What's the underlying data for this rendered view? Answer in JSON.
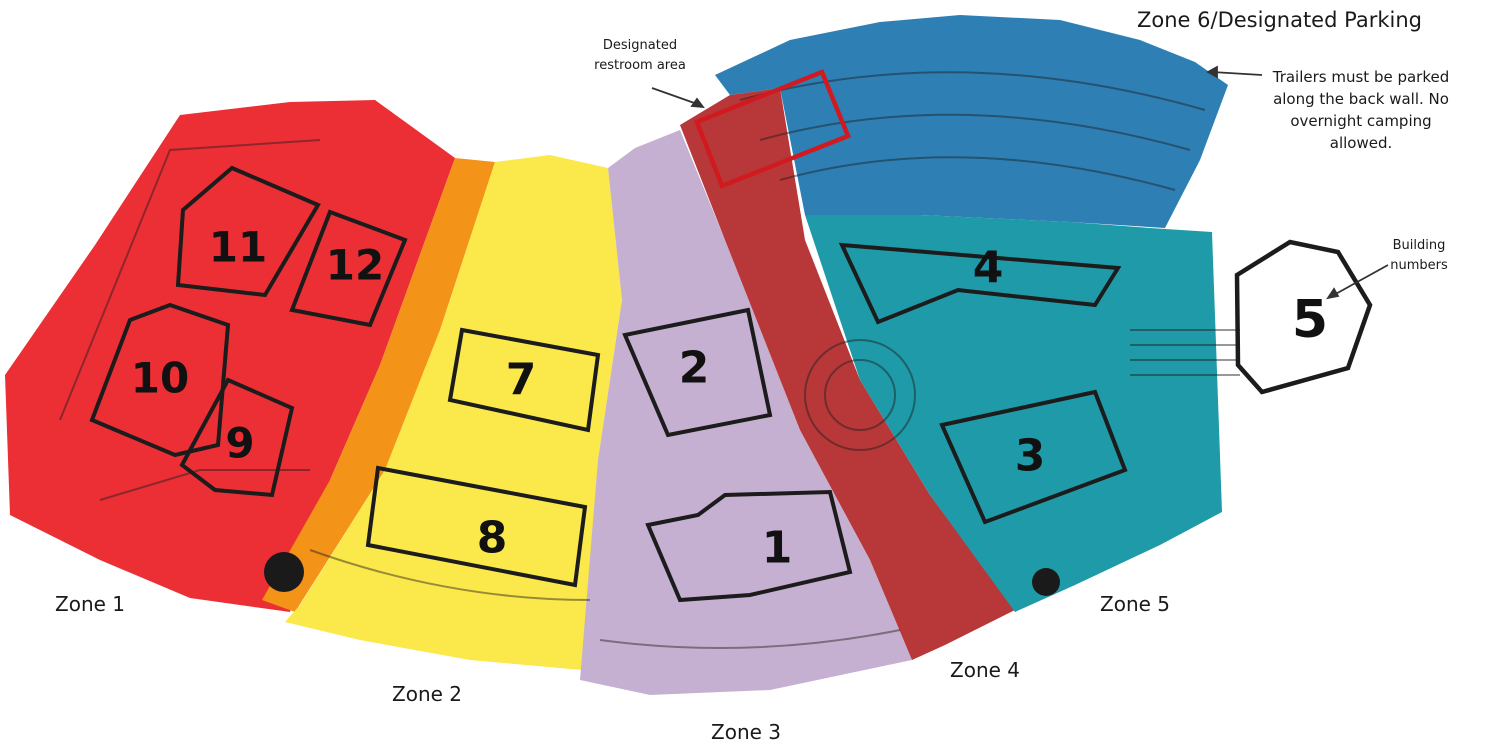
{
  "title": "Zone 6/Designated Parking",
  "annotations": {
    "restroom": "Designated restroom area",
    "trailers": "Trailers must be parked along the back wall.  No overnight camping allowed.",
    "building_numbers": "Building numbers"
  },
  "zones": [
    {
      "label": "Zone 1",
      "color": "#ec2f35"
    },
    {
      "label": "Zone 2",
      "color": "#fbe84a"
    },
    {
      "label": "Zone 3",
      "color": "#c6b0d2"
    },
    {
      "label": "Zone 4",
      "color": "#b8383a"
    },
    {
      "label": "Zone 5",
      "color": "#1f9aa8"
    },
    {
      "label": "Zone 6/Designated Parking",
      "color": "#2e7fb4"
    }
  ],
  "accent_colors": {
    "orange_band": "#f39318",
    "restroom_box": "#d11a1f",
    "outline": "#1c1c1c"
  },
  "buildings": [
    "1",
    "2",
    "3",
    "4",
    "5",
    "7",
    "8",
    "9",
    "10",
    "11",
    "12"
  ]
}
